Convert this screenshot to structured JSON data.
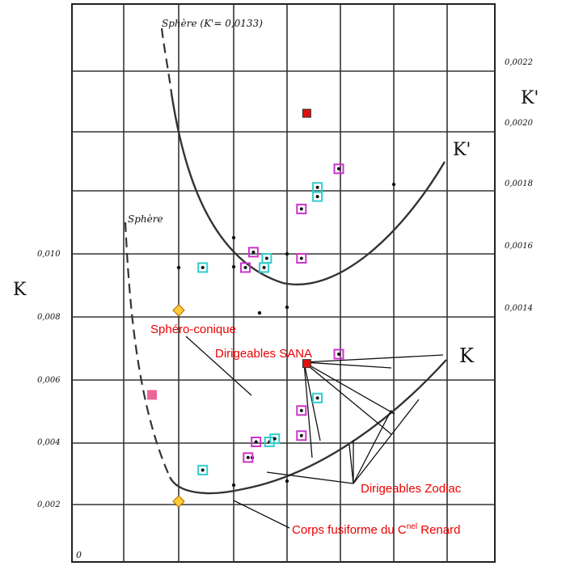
{
  "chart_data": {
    "type": "scatter",
    "left_axis": {
      "label": "K",
      "ticks": [
        "0,002",
        "0,004",
        "0,006",
        "0,008",
        "0,010"
      ],
      "tick_values": [
        0.002,
        0.004,
        0.006,
        0.008,
        0.01
      ],
      "zero_label": "0"
    },
    "right_axis": {
      "label": "K'",
      "ticks": [
        "0,0014",
        "0,0016",
        "0,0018",
        "0,0020",
        "0,0022"
      ],
      "tick_values": [
        0.0014,
        0.0016,
        0.0018,
        0.002,
        0.0022
      ]
    },
    "grid": true,
    "curve_labels": {
      "sphere_top": "Sphère (K'= 0,0133)",
      "sphere_bottom": "Sphère",
      "k_prime_curve": "K'",
      "k_curve": "K"
    },
    "annotations": {
      "sphero_conique": "Sphéro-conique",
      "sana": "Dirigeables SANA",
      "zodiac": "Dirigeables Zodiac",
      "renard_prefix": "Corps fusiforme du C",
      "renard_sup": "nel",
      "renard_suffix": " Renard"
    },
    "series": [
      {
        "name": "K'",
        "axis": "right",
        "points": [
          {
            "x": 2.0,
            "y": 0.00156,
            "m": "dot"
          },
          {
            "x": 2.45,
            "y": 0.00156,
            "m": "cyan"
          },
          {
            "x": 3.25,
            "y": 0.00156,
            "m": "magenta"
          },
          {
            "x": 3.4,
            "y": 0.00161,
            "m": "magenta"
          },
          {
            "x": 3.6,
            "y": 0.00156,
            "m": "cyan"
          },
          {
            "x": 3.65,
            "y": 0.00159,
            "m": "cyan"
          },
          {
            "x": 4.3,
            "y": 0.00159,
            "m": "magenta"
          },
          {
            "x": 4.3,
            "y": 0.00175,
            "m": "magenta"
          },
          {
            "x": 4.6,
            "y": 0.00179,
            "m": "cyan"
          },
          {
            "x": 4.6,
            "y": 0.00182,
            "m": "cyan"
          },
          {
            "x": 5.0,
            "y": 0.00188,
            "m": "magenta"
          },
          {
            "x": 4.4,
            "y": 0.00206,
            "m": "red"
          }
        ]
      },
      {
        "name": "K",
        "axis": "left",
        "points": [
          {
            "x": 1.5,
            "y": 0.0055,
            "m": "pink"
          },
          {
            "x": 2.0,
            "y": 0.0082,
            "m": "orange"
          },
          {
            "x": 2.0,
            "y": 0.0021,
            "m": "orange"
          },
          {
            "x": 2.45,
            "y": 0.0031,
            "m": "cyan"
          },
          {
            "x": 3.3,
            "y": 0.0035,
            "m": "magenta"
          },
          {
            "x": 3.45,
            "y": 0.004,
            "m": "magenta"
          },
          {
            "x": 3.7,
            "y": 0.004,
            "m": "cyan"
          },
          {
            "x": 3.8,
            "y": 0.0041,
            "m": "cyan"
          },
          {
            "x": 4.3,
            "y": 0.0042,
            "m": "magenta"
          },
          {
            "x": 4.3,
            "y": 0.005,
            "m": "magenta"
          },
          {
            "x": 4.6,
            "y": 0.0054,
            "m": "cyan"
          },
          {
            "x": 4.4,
            "y": 0.0065,
            "m": "red"
          },
          {
            "x": 5.0,
            "y": 0.0068,
            "m": "magenta"
          }
        ]
      }
    ],
    "colors": {
      "red": "#dd1111",
      "pink": "#ee6699",
      "orange": "#ffcc33",
      "magenta": "#cc33cc",
      "cyan": "#33cccc",
      "annotation_text": "#ee0000"
    }
  }
}
